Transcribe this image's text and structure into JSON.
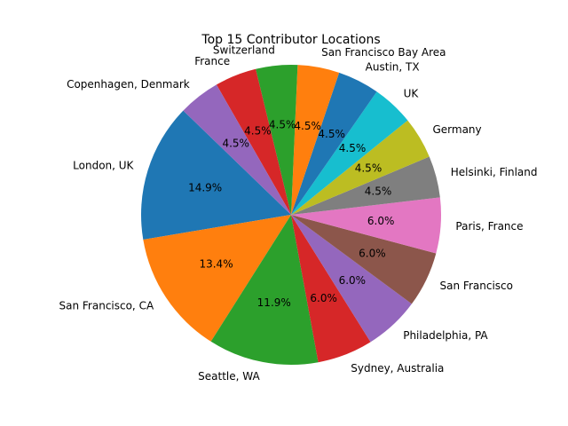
{
  "chart_data": {
    "type": "pie",
    "title": "Top 15 Contributor Locations",
    "slices": [
      {
        "label": "London, UK",
        "value": 14.9,
        "pct_label": "14.9%",
        "color": "#1f77b4"
      },
      {
        "label": "San Francisco, CA",
        "value": 13.4,
        "pct_label": "13.4%",
        "color": "#ff7f0e"
      },
      {
        "label": "Seattle, WA",
        "value": 11.9,
        "pct_label": "11.9%",
        "color": "#2ca02c"
      },
      {
        "label": "Sydney, Australia",
        "value": 6.0,
        "pct_label": "6.0%",
        "color": "#d62728"
      },
      {
        "label": "Philadelphia, PA",
        "value": 6.0,
        "pct_label": "6.0%",
        "color": "#9467bd"
      },
      {
        "label": "San Francisco",
        "value": 6.0,
        "pct_label": "6.0%",
        "color": "#8c564b"
      },
      {
        "label": "Paris, France",
        "value": 6.0,
        "pct_label": "6.0%",
        "color": "#e377c2"
      },
      {
        "label": "Helsinki, Finland",
        "value": 4.5,
        "pct_label": "4.5%",
        "color": "#7f7f7f"
      },
      {
        "label": "Germany",
        "value": 4.5,
        "pct_label": "4.5%",
        "color": "#bcbd22"
      },
      {
        "label": "UK",
        "value": 4.5,
        "pct_label": "4.5%",
        "color": "#17becf"
      },
      {
        "label": "Austin, TX",
        "value": 4.5,
        "pct_label": "4.5%",
        "color": "#1f77b4"
      },
      {
        "label": "San Francisco Bay Area",
        "value": 4.5,
        "pct_label": "4.5%",
        "color": "#ff7f0e"
      },
      {
        "label": "Switzerland",
        "value": 4.5,
        "pct_label": "4.5%",
        "color": "#2ca02c"
      },
      {
        "label": "France",
        "value": 4.5,
        "pct_label": "4.5%",
        "color": "#d62728"
      },
      {
        "label": "Copenhagen, Denmark",
        "value": 4.5,
        "pct_label": "4.5%",
        "color": "#9467bd"
      }
    ]
  }
}
